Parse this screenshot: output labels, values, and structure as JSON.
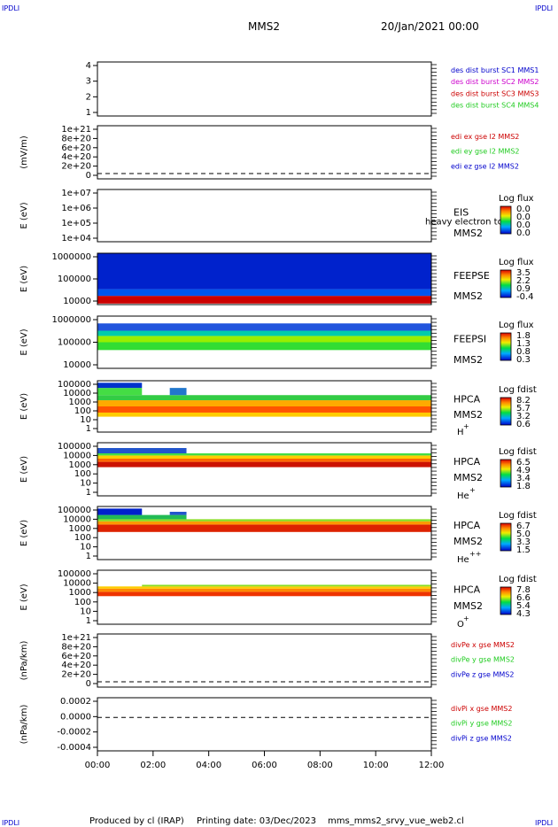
{
  "header": {
    "corner_left": "IPDLI",
    "corner_right": "IPDLI",
    "spacecraft": "MMS2",
    "date": "20/Jan/2021 00:00"
  },
  "footer": {
    "produced_by": "Produced by cl (IRAP)",
    "printing_date": "Printing date: 03/Dec/2023",
    "script_name": "mms_mms2_srvy_vue_web2.cl",
    "corner_left": "IPDLI",
    "corner_right": "IPDLI"
  },
  "colors": {
    "red": "#cc0000",
    "magenta": "#cc00cc",
    "green": "#22cc22",
    "blue": "#0000cc",
    "black": "#000000"
  },
  "chart_data": {
    "type": "heatmap",
    "x_range": [
      "00:00",
      "12:00"
    ],
    "x_ticks": [
      "00:00",
      "02:00",
      "04:00",
      "06:00",
      "08:00",
      "10:00",
      "12:00"
    ],
    "panels": [
      {
        "id": "burst",
        "kind": "line",
        "ylabel": "",
        "yticks": [
          "4",
          "3",
          "2",
          "1"
        ],
        "legend": [
          {
            "text": "des dist burst SC1 MMS1",
            "color": "#0000cc"
          },
          {
            "text": "des dist burst SC2 MMS2",
            "color": "#cc00cc"
          },
          {
            "text": "des dist burst SC3 MMS3",
            "color": "#cc0000"
          },
          {
            "text": "des dist burst SC4 MMS4",
            "color": "#22cc22"
          }
        ]
      },
      {
        "id": "edi",
        "kind": "line",
        "ylabel": "(mV/m)",
        "yticks": [
          "1e+21",
          "8e+20",
          "6e+20",
          "4e+20",
          "2e+20",
          "0"
        ],
        "dashed_zero": true,
        "legend": [
          {
            "text": "edi ex gse l2 MMS2",
            "color": "#cc0000"
          },
          {
            "text": "edi ey gse l2 MMS2",
            "color": "#22cc22"
          },
          {
            "text": "edi ez gse l2 MMS2",
            "color": "#0000cc"
          }
        ]
      },
      {
        "id": "eis",
        "kind": "spectrogram",
        "ylabel": "E (eV)",
        "yticks": [
          "1e+07",
          "1e+06",
          "1e+05",
          "1e+04"
        ],
        "instrument": "EIS",
        "spacecraft": "MMS2",
        "overlay": "heavy electron to",
        "colorbar_title": "Log flux",
        "colorbar_ticks": [
          "0.0",
          "0.0",
          "0.0",
          "0.0"
        ],
        "bands": []
      },
      {
        "id": "feepse",
        "kind": "spectrogram",
        "ylabel": "E (eV)",
        "yticks": [
          "1000000",
          "100000",
          "10000"
        ],
        "instrument": "FEEPSE",
        "spacecraft": "MMS2",
        "colorbar_title": "Log flux",
        "colorbar_ticks": [
          "3.5",
          "2.2",
          "0.9",
          "-0.4"
        ],
        "bands": [
          {
            "from": 0.0,
            "to": 12.0,
            "ylo": 0.02,
            "yhi": 0.17,
            "color": "#cc0000"
          },
          {
            "from": 0.0,
            "to": 12.0,
            "ylo": 0.17,
            "yhi": 0.3,
            "color": "#0055ee"
          },
          {
            "from": 0.0,
            "to": 12.0,
            "ylo": 0.3,
            "yhi": 1.0,
            "color": "#0022cc"
          }
        ]
      },
      {
        "id": "feepsi",
        "kind": "spectrogram",
        "ylabel": "E (eV)",
        "yticks": [
          "1000000",
          "100000",
          "10000"
        ],
        "instrument": "FEEPSI",
        "spacecraft": "MMS2",
        "colorbar_title": "Log flux",
        "colorbar_ticks": [
          "1.8",
          "1.3",
          "0.8",
          "0.3"
        ],
        "bands": [
          {
            "from": 0.0,
            "to": 12.0,
            "ylo": 0.35,
            "yhi": 0.5,
            "color": "#33dd33"
          },
          {
            "from": 0.0,
            "to": 12.0,
            "ylo": 0.5,
            "yhi": 0.62,
            "color": "#99ee00"
          },
          {
            "from": 0.0,
            "to": 12.0,
            "ylo": 0.62,
            "yhi": 0.72,
            "color": "#00ccaa"
          },
          {
            "from": 0.0,
            "to": 12.0,
            "ylo": 0.72,
            "yhi": 0.86,
            "color": "#2255dd"
          }
        ]
      },
      {
        "id": "hpca_h",
        "kind": "spectrogram",
        "ylabel": "E (eV)",
        "yticks": [
          "100000",
          "10000",
          "1000",
          "100",
          "10",
          "1"
        ],
        "instrument": "HPCA",
        "spacecraft": "MMS2",
        "species": "H",
        "species_sup": "+",
        "colorbar_title": "Log fdist",
        "colorbar_ticks": [
          "8.2",
          "5.7",
          "3.2",
          "0.6"
        ],
        "bands": [
          {
            "from": 0.0,
            "to": 12.0,
            "ylo": 0.3,
            "yhi": 0.38,
            "color": "#ffcc00"
          },
          {
            "from": 0.0,
            "to": 12.0,
            "ylo": 0.38,
            "yhi": 0.5,
            "color": "#ff5500"
          },
          {
            "from": 0.0,
            "to": 12.0,
            "ylo": 0.5,
            "yhi": 0.62,
            "color": "#ffaa00"
          },
          {
            "from": 0.0,
            "to": 12.0,
            "ylo": 0.62,
            "yhi": 0.72,
            "color": "#33cc44"
          },
          {
            "from": 0.0,
            "to": 1.6,
            "ylo": 0.72,
            "yhi": 0.86,
            "color": "#44dd44"
          },
          {
            "from": 0.0,
            "to": 1.6,
            "ylo": 0.86,
            "yhi": 0.96,
            "color": "#0033cc"
          },
          {
            "from": 2.6,
            "to": 3.2,
            "ylo": 0.72,
            "yhi": 0.86,
            "color": "#2277cc"
          }
        ]
      },
      {
        "id": "hpca_he1",
        "kind": "spectrogram",
        "ylabel": "E (eV)",
        "yticks": [
          "100000",
          "10000",
          "1000",
          "100",
          "10",
          "1"
        ],
        "instrument": "HPCA",
        "spacecraft": "MMS2",
        "species": "He",
        "species_sup": "+",
        "colorbar_title": "Log fdist",
        "colorbar_ticks": [
          "6.5",
          "4.9",
          "3.4",
          "1.8"
        ],
        "bands": [
          {
            "from": 0.0,
            "to": 12.0,
            "ylo": 0.54,
            "yhi": 0.64,
            "color": "#cc1100"
          },
          {
            "from": 0.0,
            "to": 12.0,
            "ylo": 0.64,
            "yhi": 0.7,
            "color": "#ff6600"
          },
          {
            "from": 0.0,
            "to": 12.0,
            "ylo": 0.7,
            "yhi": 0.76,
            "color": "#ffcc00"
          },
          {
            "from": 0.0,
            "to": 12.0,
            "ylo": 0.76,
            "yhi": 0.8,
            "color": "#44dd44"
          },
          {
            "from": 0.0,
            "to": 3.2,
            "ylo": 0.8,
            "yhi": 0.9,
            "color": "#2255cc"
          }
        ]
      },
      {
        "id": "hpca_he2",
        "kind": "spectrogram",
        "ylabel": "E (eV)",
        "yticks": [
          "100000",
          "10000",
          "1000",
          "100",
          "10",
          "1"
        ],
        "instrument": "HPCA",
        "spacecraft": "MMS2",
        "species": "He",
        "species_sup": "++",
        "colorbar_title": "Log fdist",
        "colorbar_ticks": [
          "6.7",
          "5.0",
          "3.3",
          "1.5"
        ],
        "bands": [
          {
            "from": 0.0,
            "to": 12.0,
            "ylo": 0.52,
            "yhi": 0.66,
            "color": "#dd2200"
          },
          {
            "from": 0.0,
            "to": 12.0,
            "ylo": 0.66,
            "yhi": 0.72,
            "color": "#ff9900"
          },
          {
            "from": 0.0,
            "to": 12.0,
            "ylo": 0.72,
            "yhi": 0.76,
            "color": "#88dd22"
          },
          {
            "from": 0.0,
            "to": 3.2,
            "ylo": 0.76,
            "yhi": 0.84,
            "color": "#22bb55"
          },
          {
            "from": 0.0,
            "to": 1.6,
            "ylo": 0.84,
            "yhi": 0.96,
            "color": "#0022cc"
          },
          {
            "from": 2.6,
            "to": 3.2,
            "ylo": 0.84,
            "yhi": 0.9,
            "color": "#2255cc"
          }
        ]
      },
      {
        "id": "hpca_o",
        "kind": "spectrogram",
        "ylabel": "E (eV)",
        "yticks": [
          "100000",
          "10000",
          "1000",
          "100",
          "10",
          "1"
        ],
        "instrument": "HPCA",
        "spacecraft": "MMS2",
        "species": "O",
        "species_sup": "+",
        "colorbar_title": "Log fdist",
        "colorbar_ticks": [
          "7.8",
          "6.6",
          "5.4",
          "4.3"
        ],
        "bands": [
          {
            "from": 0.0,
            "to": 12.0,
            "ylo": 0.52,
            "yhi": 0.6,
            "color": "#ee3300"
          },
          {
            "from": 0.0,
            "to": 12.0,
            "ylo": 0.6,
            "yhi": 0.66,
            "color": "#ff8800"
          },
          {
            "from": 0.0,
            "to": 12.0,
            "ylo": 0.66,
            "yhi": 0.7,
            "color": "#ffcc00"
          },
          {
            "from": 1.6,
            "to": 12.0,
            "ylo": 0.7,
            "yhi": 0.73,
            "color": "#88dd22"
          }
        ]
      },
      {
        "id": "divpe",
        "kind": "line",
        "ylabel": "(nPa/km)",
        "yticks": [
          "1e+21",
          "8e+20",
          "6e+20",
          "4e+20",
          "2e+20",
          "0"
        ],
        "dashed_zero": true,
        "legend": [
          {
            "text": "divPe x gse MMS2",
            "color": "#cc0000"
          },
          {
            "text": "divPe y gse MMS2",
            "color": "#22cc22"
          },
          {
            "text": "divPe z gse MMS2",
            "color": "#0000cc"
          }
        ]
      },
      {
        "id": "divpi",
        "kind": "line",
        "ylabel": "(nPa/km)",
        "yticks": [
          "0.0002",
          "0.0000",
          "-0.0002",
          "-0.0004"
        ],
        "dashed_zero": true,
        "legend": [
          {
            "text": "divPi x gse MMS2",
            "color": "#cc0000"
          },
          {
            "text": "divPi y gse MMS2",
            "color": "#22cc22"
          },
          {
            "text": "divPi z gse MMS2",
            "color": "#0000cc"
          }
        ]
      }
    ]
  }
}
